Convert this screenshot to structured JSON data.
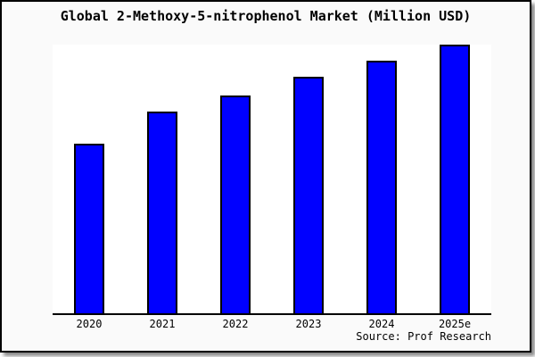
{
  "colors": {
    "bar_fill": "#0000ff",
    "bar_border": "#000000",
    "plot_background": "#ffffff",
    "frame_background": "#fafafa",
    "frame_border": "#000000",
    "axis": "#000000",
    "shadow": "#888888"
  },
  "source": "Source: Prof Research",
  "chart_data": {
    "type": "bar",
    "title": "Global 2-Methoxy-5-nitrophenol Market (Million USD)",
    "categories": [
      "2020",
      "2021",
      "2022",
      "2023",
      "2024",
      "2025e"
    ],
    "values": [
      63,
      75,
      81,
      88,
      94,
      100
    ],
    "xlabel": "",
    "ylabel": "",
    "ylim": [
      0,
      100
    ],
    "grid": false,
    "legend": false,
    "y_axis_shown": false,
    "annotations": [
      "Source: Prof Research"
    ]
  }
}
